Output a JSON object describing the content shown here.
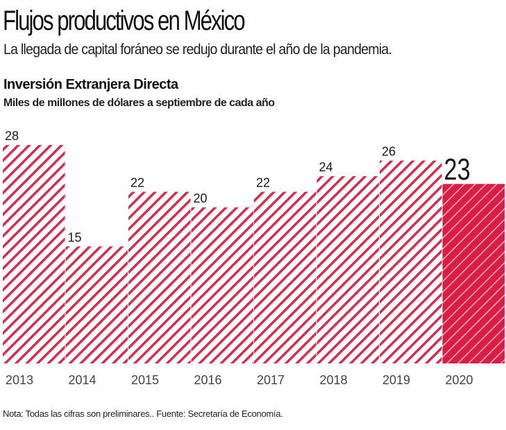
{
  "header": {
    "title": "Flujos productivos en México",
    "subtitle": "La llegada de capital foráneo se redujo durante el año de la pandemia."
  },
  "footer": {
    "note": "Nota: Todas las cifras son preliminares.. Fuente: Secretaría de Economía."
  },
  "colors": {
    "bar_hatch": "#d62a4e",
    "highlight": "#d81e45",
    "text": "#1a1a1a",
    "axis_text": "#444444"
  },
  "chart_data": {
    "type": "bar",
    "title": "Inversión Extranjera Directa",
    "subtitle": "Miles de millones de dólares a septiembre de cada año",
    "xlabel": "",
    "ylabel": "",
    "categories": [
      "2013",
      "2014",
      "2015",
      "2016",
      "2017",
      "2018",
      "2019",
      "2020"
    ],
    "values": [
      28,
      15,
      22,
      20,
      22,
      24,
      26,
      23
    ],
    "data_labels": [
      "28",
      "15",
      "22",
      "20",
      "22",
      "24",
      "26",
      "23"
    ],
    "highlight_category": "2020",
    "ylim": [
      0,
      28
    ],
    "grid": false,
    "legend": "none"
  }
}
